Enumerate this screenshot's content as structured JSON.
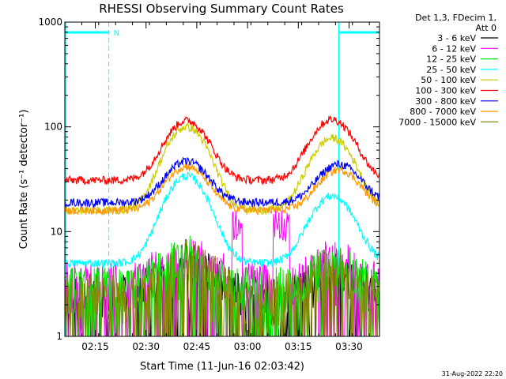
{
  "chart_data": {
    "type": "line",
    "title": "RHESSI Observing Summary Count Rates",
    "xlabel": "Start Time (11-Jun-16 02:03:42)",
    "ylabel": "Count Rate (s⁻¹ detector⁻¹)",
    "ylog": true,
    "xlim_minutes": [
      "02:06",
      "03:39"
    ],
    "ylim": [
      1,
      1000
    ],
    "x_ticks": [
      "02:15",
      "02:30",
      "02:45",
      "03:00",
      "03:15",
      "03:30"
    ],
    "y_ticks": [
      1,
      10,
      100,
      1000
    ],
    "y_tick_labels": [
      "1",
      "10",
      "100",
      "1000"
    ],
    "legend_header": [
      "Det 1,3, FDecim 1,",
      "Att 0"
    ],
    "legend_position": "right",
    "night_intervals": [
      [
        "02:06",
        "02:19"
      ],
      [
        "03:27",
        "03:39"
      ]
    ],
    "night_marker_label": "N",
    "series": [
      {
        "name": "3 - 6 keV",
        "color": "#000000",
        "kind": "sparse_low",
        "base": 3.0
      },
      {
        "name": "6 - 12 keV",
        "color": "#ff00ff",
        "kind": "sparse_low",
        "base": 4.0
      },
      {
        "name": "12 - 25 keV",
        "color": "#00ee00",
        "kind": "sparse_low",
        "base": 3.5
      },
      {
        "name": "25 - 50 keV",
        "color": "#00ffff",
        "kind": "peaked",
        "base": 5,
        "peaks": [
          {
            "t": "02:42",
            "v": 34
          },
          {
            "t": "03:25",
            "v": 22
          }
        ]
      },
      {
        "name": "50 - 100 keV",
        "color": "#cccc00",
        "kind": "peaked",
        "base": 16,
        "peaks": [
          {
            "t": "02:42",
            "v": 100
          },
          {
            "t": "03:25",
            "v": 78
          }
        ]
      },
      {
        "name": "100 - 300 keV",
        "color": "#ff0000",
        "kind": "peaked",
        "base": 31,
        "peaks": [
          {
            "t": "02:42",
            "v": 115
          },
          {
            "t": "03:25",
            "v": 118
          }
        ]
      },
      {
        "name": "300 - 800 keV",
        "color": "#0000ff",
        "kind": "peaked",
        "base": 19,
        "peaks": [
          {
            "t": "02:42",
            "v": 47
          },
          {
            "t": "03:27",
            "v": 44
          }
        ]
      },
      {
        "name": "800 - 7000 keV",
        "color": "#ff9900",
        "kind": "peaked",
        "base": 16,
        "peaks": [
          {
            "t": "02:42",
            "v": 42
          },
          {
            "t": "03:27",
            "v": 39
          }
        ]
      },
      {
        "name": "7000 - 15000 keV",
        "color": "#888800",
        "kind": "sparse_low",
        "base": 3.0
      }
    ]
  },
  "timestamp": "31-Aug-2022 22:20"
}
